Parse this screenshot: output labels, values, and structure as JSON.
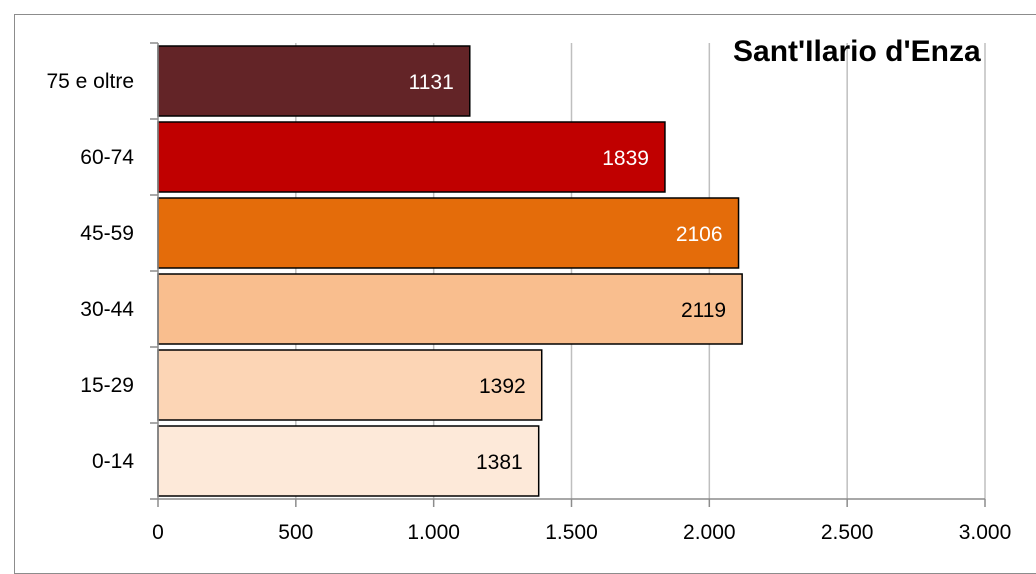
{
  "chart_data": {
    "type": "bar",
    "orientation": "horizontal",
    "title": "Sant'Ilario d'Enza",
    "categories": [
      "75 e oltre",
      "60-74",
      "45-59",
      "30-44",
      "15-29",
      "0-14"
    ],
    "values": [
      1131,
      1839,
      2106,
      2119,
      1392,
      1381
    ],
    "value_labels": [
      "1131",
      "1839",
      "2106",
      "2119",
      "1392",
      "1381"
    ],
    "colors": [
      "#632427",
      "#c00000",
      "#e46c0a",
      "#f9be8e",
      "#fcd5b5",
      "#fde9d9"
    ],
    "label_colors": [
      "#ffffff",
      "#ffffff",
      "#ffffff",
      "#000000",
      "#000000",
      "#000000"
    ],
    "xlim": [
      0,
      3000
    ],
    "x_ticks": [
      0,
      500,
      1000,
      1500,
      2000,
      2500,
      3000
    ],
    "x_tick_labels": [
      "0",
      "500",
      "1.000",
      "1.500",
      "2.000",
      "2.500",
      "3.000"
    ],
    "grid": true,
    "legend": "none",
    "xlabel": "",
    "ylabel": ""
  }
}
